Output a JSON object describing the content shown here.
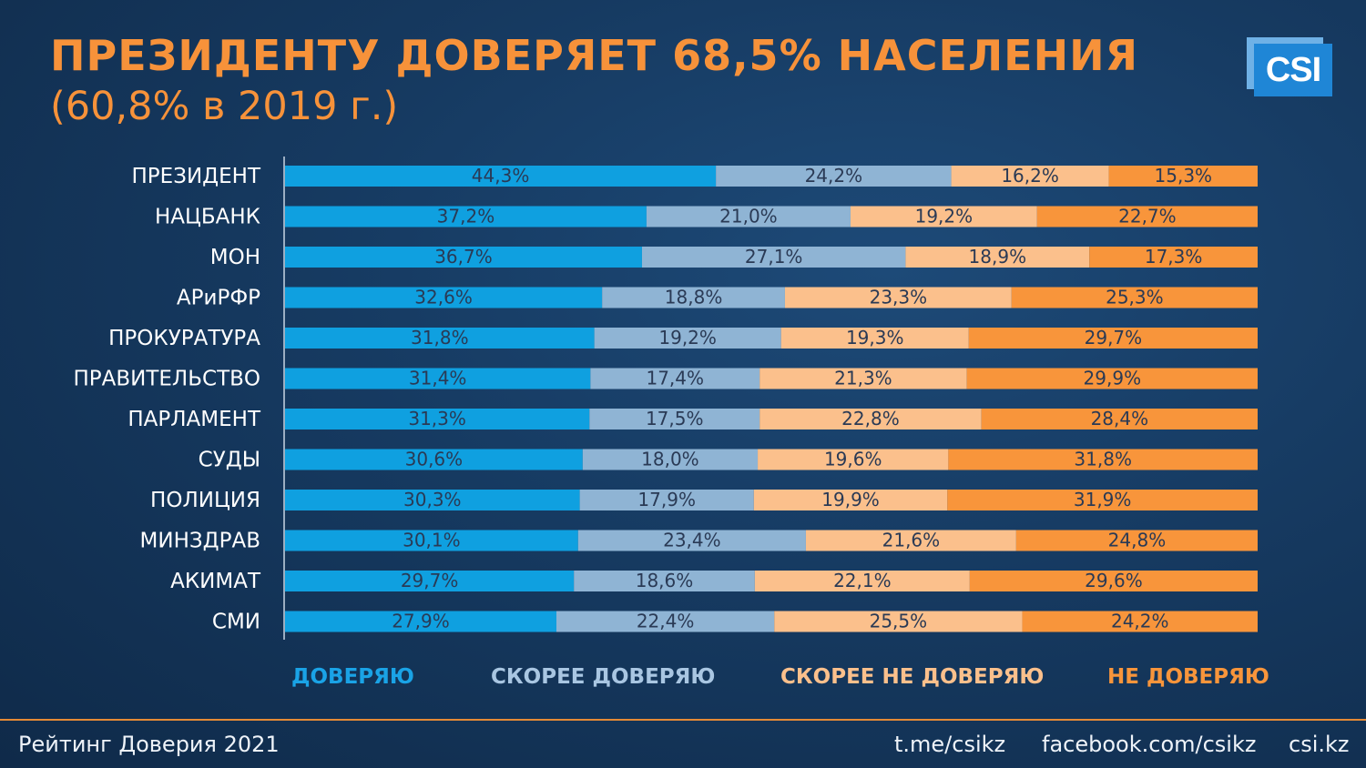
{
  "title": "ПРЕЗИДЕНТУ ДОВЕРЯЕТ 68,5% НАСЕЛЕНИЯ",
  "subtitle": "(60,8% в 2019 г.)",
  "logo_text": "CSI",
  "colors": {
    "title": "#f7923a",
    "trust": "#0fa0e0",
    "rather_trust": "#8fb4d4",
    "rather_distrust": "#fbc08c",
    "distrust": "#f8953b",
    "background": "#163a61"
  },
  "chart_data": {
    "type": "bar",
    "orientation": "horizontal",
    "stacked": "percent",
    "title": "ПРЕЗИДЕНТУ ДОВЕРЯЕТ 68,5% НАСЕЛЕНИЯ",
    "subtitle": "(60,8% в 2019 г.)",
    "categories": [
      "ПРЕЗИДЕНТ",
      "НАЦБАНК",
      "МОН",
      "АРиРФР",
      "ПРОКУРАТУРА",
      "ПРАВИТЕЛЬСТВО",
      "ПАРЛАМЕНТ",
      "СУДЫ",
      "ПОЛИЦИЯ",
      "МИНЗДРАВ",
      "АКИМАТ",
      "СМИ"
    ],
    "series": [
      {
        "name": "ДОВЕРЯЮ",
        "color": "#0fa0e0",
        "values": [
          44.3,
          37.2,
          36.7,
          32.6,
          31.8,
          31.4,
          31.3,
          30.6,
          30.3,
          30.1,
          29.7,
          27.9
        ],
        "labels": [
          "44,3%",
          "37,2%",
          "36,7%",
          "32,6%",
          "31,8%",
          "31,4%",
          "31,3%",
          "30,6%",
          "30,3%",
          "30,1%",
          "29,7%",
          "27,9%"
        ]
      },
      {
        "name": "СКОРЕЕ ДОВЕРЯЮ",
        "color": "#8fb4d4",
        "values": [
          24.2,
          21.0,
          27.1,
          18.8,
          19.2,
          17.4,
          17.5,
          18.0,
          17.9,
          23.4,
          18.6,
          22.4
        ],
        "labels": [
          "24,2%",
          "21,0%",
          "27,1%",
          "18,8%",
          "19,2%",
          "17,4%",
          "17,5%",
          "18,0%",
          "17,9%",
          "23,4%",
          "18,6%",
          "22,4%"
        ]
      },
      {
        "name": "СКОРЕЕ НЕ ДОВЕРЯЮ",
        "color": "#fbc08c",
        "values": [
          16.2,
          19.2,
          18.9,
          23.3,
          19.3,
          21.3,
          22.8,
          19.6,
          19.9,
          21.6,
          22.1,
          25.5
        ],
        "labels": [
          "16,2%",
          "19,2%",
          "18,9%",
          "23,3%",
          "19,3%",
          "21,3%",
          "22,8%",
          "19,6%",
          "19,9%",
          "21,6%",
          "22,1%",
          "25,5%"
        ]
      },
      {
        "name": "НЕ ДОВЕРЯЮ",
        "color": "#f8953b",
        "values": [
          15.3,
          22.7,
          17.3,
          25.3,
          29.7,
          29.9,
          28.4,
          31.8,
          31.9,
          24.8,
          29.6,
          24.2
        ],
        "labels": [
          "15,3%",
          "22,7%",
          "17,3%",
          "25,3%",
          "29,7%",
          "29,9%",
          "28,4%",
          "31,8%",
          "31,9%",
          "24,8%",
          "29,6%",
          "24,2%"
        ]
      }
    ],
    "legend_placement": "bottom",
    "grid": false
  },
  "legend": [
    {
      "label": "ДОВЕРЯЮ",
      "color": "#1aa3e6"
    },
    {
      "label": "СКОРЕЕ ДОВЕРЯЮ",
      "color": "#a9c6e2"
    },
    {
      "label": "СКОРЕЕ НЕ ДОВЕРЯЮ",
      "color": "#fbc08c"
    },
    {
      "label": "НЕ ДОВЕРЯЮ",
      "color": "#f8953b"
    }
  ],
  "footer": {
    "left": "Рейтинг Доверия 2021",
    "telegram": "t.me/csikz",
    "facebook": "facebook.com/csikz",
    "site": "csi.kz"
  }
}
